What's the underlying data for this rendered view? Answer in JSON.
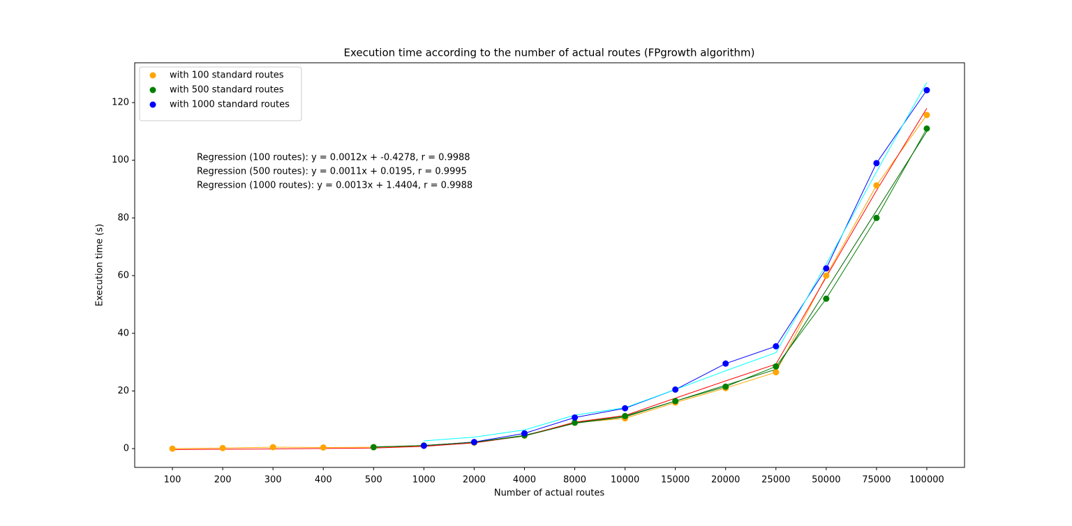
{
  "chart_data": {
    "type": "line",
    "title": "Execution time according to the number of actual routes (FPgrowth algorithm)",
    "x_label": "Number of actual routes",
    "y_label": "Execution time (s)",
    "categories": [
      "100",
      "200",
      "300",
      "400",
      "500",
      "1000",
      "2000",
      "4000",
      "8000",
      "10000",
      "15000",
      "20000",
      "25000",
      "50000",
      "75000",
      "100000"
    ],
    "series": [
      {
        "name": "with 100 standard routes",
        "color": "orange",
        "marker": true,
        "values": [
          0,
          0.2,
          0.5,
          0.4,
          0.5,
          1,
          2.1,
          4.5,
          9,
          10.5,
          16,
          21,
          26.5,
          60,
          91.3,
          115.7
        ]
      },
      {
        "name": "with 500 standard routes",
        "color": "green",
        "marker": true,
        "values": [
          null,
          null,
          null,
          null,
          0.5,
          1.1,
          2.2,
          4.6,
          9,
          11.3,
          16.5,
          21.5,
          28.5,
          52,
          80,
          111
        ]
      },
      {
        "name": "with 1000 standard routes",
        "color": "blue",
        "marker": true,
        "values": [
          null,
          null,
          null,
          null,
          null,
          1,
          2.3,
          5.3,
          10.8,
          14,
          20.5,
          29.5,
          35.5,
          62.5,
          99,
          124.3
        ]
      }
    ],
    "regression_lines": [
      {
        "color": "red",
        "values": [
          -0.3,
          -0.2,
          -0.1,
          0.05,
          0.2,
          0.8,
          2,
          4.4,
          9.2,
          11.5,
          17.5,
          23.5,
          29.3,
          59.5,
          89.5,
          118
        ]
      },
      {
        "color": "darkgreen",
        "values": [
          null,
          null,
          null,
          null,
          0.6,
          1.1,
          2.2,
          4.4,
          8.8,
          11,
          16.5,
          22,
          27.5,
          55,
          82.5,
          110
        ]
      },
      {
        "color": "cyan",
        "values": [
          null,
          null,
          null,
          null,
          null,
          2.7,
          4,
          6.5,
          11.6,
          14.2,
          20.5,
          27,
          33.3,
          64,
          96,
          127
        ]
      }
    ],
    "annotations": [
      {
        "text": "Regression (100 routes): y = 0.0012x + -0.4278, r = 0.9988",
        "color": "red"
      },
      {
        "text": "Regression (500 routes): y = 0.0011x + 0.0195, r = 0.9995",
        "color": "darkgreen"
      },
      {
        "text": "Regression (1000 routes): y = 0.0013x + 1.4404, r = 0.9988",
        "color": "blue"
      }
    ],
    "ylim": [
      -6.5,
      133.8
    ],
    "yticks": [
      0,
      20,
      40,
      60,
      80,
      100,
      120
    ],
    "legend": "upper left"
  }
}
